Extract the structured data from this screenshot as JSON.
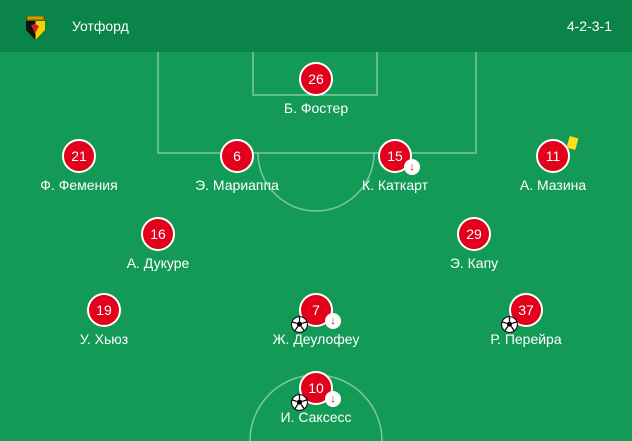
{
  "header": {
    "team": "Уотфорд",
    "formation": "4-2-3-1",
    "crest_icon": "watford-crest"
  },
  "colors": {
    "header": "#0a8449",
    "pitch": "#139a57",
    "player": "#e2001a",
    "card": "#ffe01a"
  },
  "players": [
    {
      "number": "26",
      "name": "Б. Фостер"
    },
    {
      "number": "21",
      "name": "Ф. Фемения"
    },
    {
      "number": "6",
      "name": "Э. Мариаппа"
    },
    {
      "number": "15",
      "name": "К. Каткарт",
      "substituted": true
    },
    {
      "number": "11",
      "name": "А. Мазина",
      "yellow_card": true
    },
    {
      "number": "16",
      "name": "А. Дукуре"
    },
    {
      "number": "29",
      "name": "Э. Капу"
    },
    {
      "number": "19",
      "name": "У. Хьюз"
    },
    {
      "number": "7",
      "name": "Ж. Деулофеу",
      "goal": true,
      "substituted": true
    },
    {
      "number": "37",
      "name": "Р. Перейра",
      "goal": true
    },
    {
      "number": "10",
      "name": "И. Саксесс",
      "goal": true,
      "substituted": true
    }
  ],
  "icons": {
    "sub": "↓"
  }
}
